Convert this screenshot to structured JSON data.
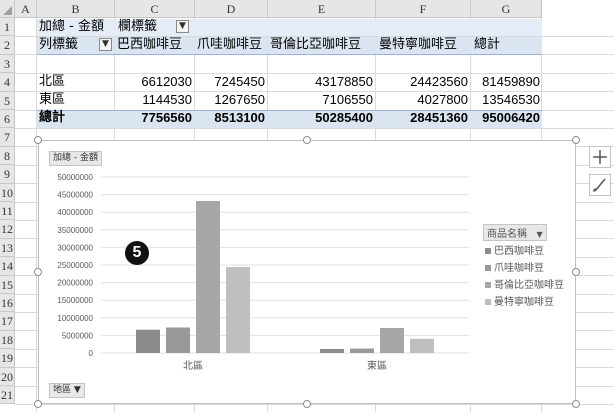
{
  "columns": [
    "A",
    "B",
    "C",
    "D",
    "E",
    "F",
    "G"
  ],
  "rows": [
    "1",
    "2",
    "3",
    "4",
    "5",
    "6",
    "7",
    "8",
    "9",
    "10",
    "11",
    "12",
    "13",
    "14",
    "15",
    "16",
    "17",
    "18",
    "19",
    "20",
    "21"
  ],
  "pivot": {
    "value_field": "加總 - 金額",
    "col_label": "欄標籤",
    "row_label": "列標籤",
    "headers": [
      "巴西咖啡豆",
      "爪哇咖啡豆",
      "哥倫比亞咖啡豆",
      "曼特寧咖啡豆",
      "總計"
    ],
    "body": [
      {
        "label": "北區",
        "values": [
          "6612030",
          "7245450",
          "43178850",
          "24423560",
          "81459890"
        ]
      },
      {
        "label": "東區",
        "values": [
          "1144530",
          "1267650",
          "7106550",
          "4027800",
          "13546530"
        ]
      }
    ],
    "total": {
      "label": "總計",
      "values": [
        "7756560",
        "8513100",
        "50285400",
        "28451360",
        "95006420"
      ]
    }
  },
  "chart": {
    "value_button": "加總 - 金額",
    "axis_button": "地區",
    "legend_title": "商品名稱",
    "step_marker": "5"
  },
  "icons": {
    "plus": "plus-icon",
    "brush": "brush-icon",
    "filter": "filter-icon"
  },
  "chart_data": {
    "type": "bar",
    "categories": [
      "北區",
      "東區"
    ],
    "series": [
      {
        "name": "巴西咖啡豆",
        "values": [
          6612030,
          1144530
        ],
        "color": "#8c8c8c"
      },
      {
        "name": "爪哇咖啡豆",
        "values": [
          7245450,
          1267650
        ],
        "color": "#999999"
      },
      {
        "name": "哥倫比亞咖啡豆",
        "values": [
          43178850,
          7106550
        ],
        "color": "#a6a6a6"
      },
      {
        "name": "曼特寧咖啡豆",
        "values": [
          24423560,
          4027800
        ],
        "color": "#bfbfbf"
      }
    ],
    "yticks": [
      "50000000",
      "45000000",
      "40000000",
      "35000000",
      "30000000",
      "25000000",
      "20000000",
      "15000000",
      "10000000",
      "5000000",
      "0"
    ],
    "ylim": [
      0,
      50000000
    ],
    "grid": true,
    "legend": "right"
  }
}
